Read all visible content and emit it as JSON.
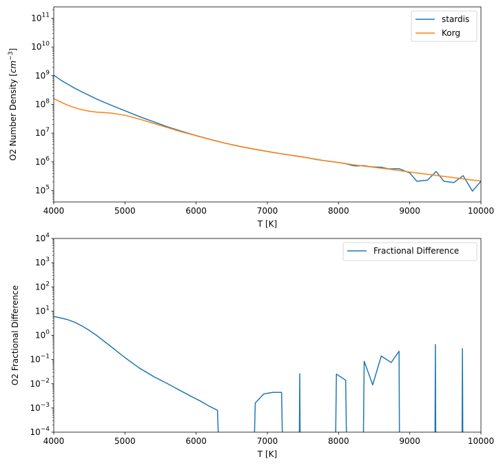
{
  "chart_data": [
    {
      "type": "line",
      "xlabel": "T [K]",
      "ylabel": "O2 Number Density [cm^-3]",
      "ylabel_unit_base": "cm",
      "ylabel_unit_exp": "−3",
      "xscale": "linear",
      "yscale": "log",
      "xlim": [
        4000,
        10000
      ],
      "ylim": [
        40000,
        250000000000
      ],
      "xticks": [
        4000,
        5000,
        6000,
        7000,
        8000,
        9000,
        10000
      ],
      "xtick_labels": [
        "4000",
        "5000",
        "6000",
        "7000",
        "8000",
        "9000",
        "10000"
      ],
      "yticks_exp": [
        5,
        6,
        7,
        8,
        9,
        10,
        11
      ],
      "legend": "top-right",
      "series": [
        {
          "name": "stardis",
          "color": "#1f77b4",
          "x": [
            4000,
            4100,
            4200,
            4300,
            4400,
            4500,
            4600,
            4800,
            5000,
            5200,
            5400,
            5600,
            5800,
            6000,
            6200,
            6400,
            6600,
            6800,
            7000,
            7200,
            7400,
            7500,
            7600,
            7700,
            7800,
            7900,
            8000,
            8100,
            8200,
            8250,
            8350,
            8450,
            8500,
            8600,
            8700,
            8750,
            8850,
            9000,
            9100,
            9250,
            9370,
            9480,
            9620,
            9750,
            9880,
            10000
          ],
          "y": [
            1050000000,
            700000000,
            500000000,
            360000000,
            270000000,
            205000000,
            155000000,
            95000000,
            60000000,
            38000000,
            25000000,
            16500000,
            11500000,
            8200000,
            6000000,
            4500000,
            3500000,
            2800000,
            2300000,
            1900000,
            1600000,
            1480000,
            1330000,
            1200000,
            1100000,
            1020000,
            950000,
            860000,
            740000,
            720000,
            740000,
            670000,
            660000,
            650000,
            570000,
            570000,
            580000,
            410000,
            210000,
            230000,
            460000,
            210000,
            190000,
            330000,
            95000,
            210000
          ]
        },
        {
          "name": "Korg",
          "color": "#ff7f0e",
          "x": [
            4000,
            4100,
            4200,
            4300,
            4400,
            4500,
            4600,
            4800,
            5000,
            5200,
            5400,
            5600,
            5800,
            6000,
            6200,
            6400,
            6600,
            6800,
            7000,
            7200,
            7400,
            7600,
            7800,
            8000,
            8200,
            8400,
            8600,
            8800,
            9000,
            9200,
            9400,
            9600,
            9800,
            10000
          ],
          "y": [
            160000000,
            120000000,
            93000000,
            76000000,
            65000000,
            58000000,
            54000000,
            50000000,
            42000000,
            31000000,
            22000000,
            15500000,
            11000000,
            8200000,
            6000000,
            4500000,
            3500000,
            2800000,
            2300000,
            1900000,
            1600000,
            1330000,
            1100000,
            950000,
            790000,
            690000,
            600000,
            520000,
            440000,
            380000,
            330000,
            285000,
            245000,
            215000
          ]
        }
      ]
    },
    {
      "type": "line",
      "xlabel": "T [K]",
      "ylabel": "O2 Fractional Difference",
      "xscale": "linear",
      "yscale": "log",
      "xlim": [
        4000,
        10000
      ],
      "ylim": [
        0.0001,
        10000
      ],
      "xticks": [
        4000,
        5000,
        6000,
        7000,
        8000,
        9000,
        10000
      ],
      "xtick_labels": [
        "4000",
        "5000",
        "6000",
        "7000",
        "8000",
        "9000",
        "10000"
      ],
      "yticks_exp": [
        -4,
        -3,
        -2,
        -1,
        0,
        1,
        2,
        3,
        4
      ],
      "legend": "top-right",
      "series": [
        {
          "name": "Fractional Difference",
          "color": "#1f77b4",
          "x": [
            4000,
            4100,
            4200,
            4300,
            4400,
            4500,
            4600,
            4800,
            5000,
            5200,
            5400,
            5600,
            5800,
            5950,
            6050,
            6180,
            6300,
            6310,
            null,
            6820,
            6830,
            6950,
            7080,
            7200,
            7210,
            null,
            7450,
            7455,
            7460,
            null,
            7960,
            7970,
            8100,
            8110,
            null,
            8350,
            8360,
            8480,
            8600,
            8740,
            8850,
            8855,
            null,
            9355,
            9360,
            9365,
            null,
            9735,
            9740,
            9745
          ],
          "y": [
            6,
            5.2,
            4.4,
            3.4,
            2.4,
            1.6,
            1.0,
            0.35,
            0.12,
            0.045,
            0.02,
            0.01,
            0.0048,
            0.0028,
            0.002,
            0.0012,
            0.0008,
            0.0001,
            null,
            0.0001,
            0.0016,
            0.0038,
            0.0044,
            0.0044,
            0.0001,
            null,
            0.0001,
            0.026,
            0.0001,
            null,
            0.0001,
            0.025,
            0.014,
            0.0001,
            null,
            0.0001,
            0.085,
            0.009,
            0.14,
            0.075,
            0.22,
            0.0001,
            null,
            0.0001,
            0.42,
            0.0001,
            null,
            0.0001,
            0.28,
            0.0001
          ]
        }
      ]
    }
  ]
}
